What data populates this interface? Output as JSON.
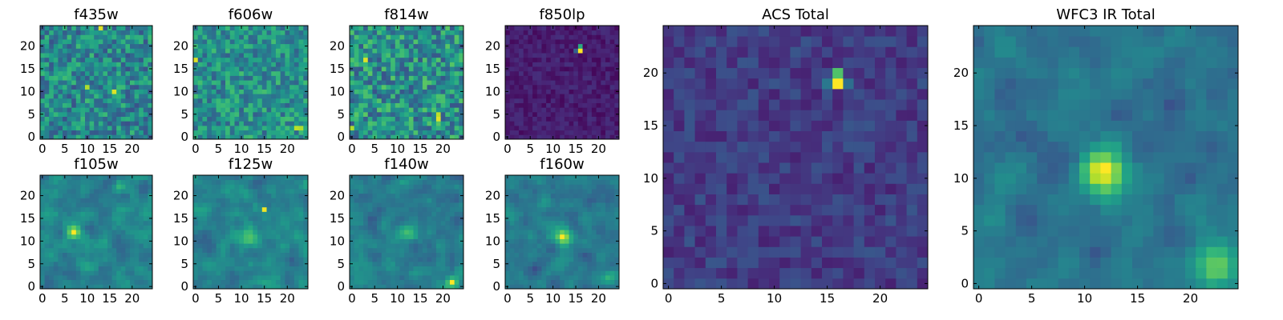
{
  "figure": {
    "colormap": "viridis",
    "colormap_stops": [
      "#440154",
      "#482878",
      "#3e4989",
      "#31688e",
      "#26828e",
      "#1f9e89",
      "#35b779",
      "#6ece58",
      "#b5de2b",
      "#fde725"
    ],
    "axis_color": "#000000"
  },
  "chart_data": [
    {
      "type": "heatmap",
      "title": "f435w",
      "grid_size": 25,
      "xlim": [
        -0.5,
        24.5
      ],
      "ylim": [
        -0.5,
        24.5
      ],
      "xticks": [
        0,
        5,
        10,
        15,
        20
      ],
      "yticks": [
        0,
        5,
        10,
        15,
        20
      ],
      "background_level": 0.47,
      "background_spread": 0.22,
      "peaks": [],
      "hot_pixels": [
        {
          "x": 16,
          "y": 10,
          "v": 0.95
        },
        {
          "x": 13,
          "y": 24,
          "v": 0.95
        },
        {
          "x": 10,
          "y": 11,
          "v": 0.88
        }
      ]
    },
    {
      "type": "heatmap",
      "title": "f606w",
      "grid_size": 25,
      "xlim": [
        -0.5,
        24.5
      ],
      "ylim": [
        -0.5,
        24.5
      ],
      "xticks": [
        0,
        5,
        10,
        15,
        20
      ],
      "yticks": [
        0,
        5,
        10,
        15,
        20
      ],
      "background_level": 0.5,
      "background_spread": 0.2,
      "peaks": [],
      "hot_pixels": [
        {
          "x": 0,
          "y": 17,
          "v": 0.95
        },
        {
          "x": 22,
          "y": 2,
          "v": 0.9
        },
        {
          "x": 23,
          "y": 2,
          "v": 0.88
        }
      ]
    },
    {
      "type": "heatmap",
      "title": "f814w",
      "grid_size": 25,
      "xlim": [
        -0.5,
        24.5
      ],
      "ylim": [
        -0.5,
        24.5
      ],
      "xticks": [
        0,
        5,
        10,
        15,
        20
      ],
      "yticks": [
        0,
        5,
        10,
        15,
        20
      ],
      "background_level": 0.5,
      "background_spread": 0.24,
      "peaks": [],
      "hot_pixels": [
        {
          "x": 3,
          "y": 17,
          "v": 0.95
        },
        {
          "x": 19,
          "y": 4,
          "v": 0.95
        },
        {
          "x": 19,
          "y": 5,
          "v": 0.9
        },
        {
          "x": 0,
          "y": 2,
          "v": 0.88
        }
      ]
    },
    {
      "type": "heatmap",
      "title": "f850lp",
      "grid_size": 25,
      "xlim": [
        -0.5,
        24.5
      ],
      "ylim": [
        -0.5,
        24.5
      ],
      "xticks": [
        0,
        5,
        10,
        15,
        20
      ],
      "yticks": [
        0,
        5,
        10,
        15,
        20
      ],
      "background_level": 0.08,
      "background_spread": 0.06,
      "peaks": [],
      "hot_pixels": [
        {
          "x": 16,
          "y": 19,
          "v": 1.0
        },
        {
          "x": 16,
          "y": 20,
          "v": 0.6
        },
        {
          "x": 15,
          "y": 19,
          "v": 0.3
        }
      ]
    },
    {
      "type": "heatmap",
      "title": "f105w",
      "grid_size": 25,
      "xlim": [
        -0.5,
        24.5
      ],
      "ylim": [
        -0.5,
        24.5
      ],
      "xticks": [
        0,
        5,
        10,
        15,
        20
      ],
      "yticks": [
        0,
        5,
        10,
        15,
        20
      ],
      "background_level": 0.45,
      "background_spread": 0.18,
      "peaks": [
        {
          "x": 7,
          "y": 12,
          "amp": 0.45,
          "sigma": 1.2
        },
        {
          "x": 17,
          "y": 22,
          "amp": 0.3,
          "sigma": 1.0
        }
      ],
      "hot_pixels": [
        {
          "x": 7,
          "y": 12,
          "v": 1.0
        }
      ]
    },
    {
      "type": "heatmap",
      "title": "f125w",
      "grid_size": 25,
      "xlim": [
        -0.5,
        24.5
      ],
      "ylim": [
        -0.5,
        24.5
      ],
      "xticks": [
        0,
        5,
        10,
        15,
        20
      ],
      "yticks": [
        0,
        5,
        10,
        15,
        20
      ],
      "background_level": 0.45,
      "background_spread": 0.17,
      "peaks": [
        {
          "x": 12,
          "y": 11,
          "amp": 0.25,
          "sigma": 1.8
        }
      ],
      "hot_pixels": [
        {
          "x": 15,
          "y": 17,
          "v": 0.98
        }
      ]
    },
    {
      "type": "heatmap",
      "title": "f140w",
      "grid_size": 25,
      "xlim": [
        -0.5,
        24.5
      ],
      "ylim": [
        -0.5,
        24.5
      ],
      "xticks": [
        0,
        5,
        10,
        15,
        20
      ],
      "yticks": [
        0,
        5,
        10,
        15,
        20
      ],
      "background_level": 0.43,
      "background_spread": 0.17,
      "peaks": [
        {
          "x": 12,
          "y": 12,
          "amp": 0.25,
          "sigma": 1.5
        },
        {
          "x": 22,
          "y": 1,
          "amp": 0.45,
          "sigma": 1.0
        }
      ],
      "hot_pixels": [
        {
          "x": 22,
          "y": 1,
          "v": 1.0
        }
      ]
    },
    {
      "type": "heatmap",
      "title": "f160w",
      "grid_size": 25,
      "xlim": [
        -0.5,
        24.5
      ],
      "ylim": [
        -0.5,
        24.5
      ],
      "xticks": [
        0,
        5,
        10,
        15,
        20
      ],
      "yticks": [
        0,
        5,
        10,
        15,
        20
      ],
      "background_level": 0.4,
      "background_spread": 0.15,
      "peaks": [
        {
          "x": 12,
          "y": 11,
          "amp": 0.5,
          "sigma": 1.3
        },
        {
          "x": 22,
          "y": 2,
          "amp": 0.3,
          "sigma": 1.2
        }
      ],
      "hot_pixels": [
        {
          "x": 12,
          "y": 11,
          "v": 1.0
        }
      ]
    },
    {
      "type": "heatmap",
      "title": "ACS Total",
      "grid_size": 25,
      "xlim": [
        -0.5,
        24.5
      ],
      "ylim": [
        -0.5,
        24.5
      ],
      "xticks": [
        0,
        5,
        10,
        15,
        20
      ],
      "yticks": [
        0,
        5,
        10,
        15,
        20
      ],
      "background_level": 0.18,
      "background_spread": 0.09,
      "peaks": [],
      "hot_pixels": [
        {
          "x": 16,
          "y": 19,
          "v": 1.0
        },
        {
          "x": 16,
          "y": 20,
          "v": 0.72
        },
        {
          "x": 15,
          "y": 19,
          "v": 0.4
        },
        {
          "x": 17,
          "y": 19,
          "v": 0.36
        }
      ]
    },
    {
      "type": "heatmap",
      "title": "WFC3 IR Total",
      "grid_size": 25,
      "xlim": [
        -0.5,
        24.5
      ],
      "ylim": [
        -0.5,
        24.5
      ],
      "xticks": [
        0,
        5,
        10,
        15,
        20
      ],
      "yticks": [
        0,
        5,
        10,
        15,
        20
      ],
      "background_level": 0.38,
      "background_spread": 0.14,
      "peaks": [
        {
          "x": 12,
          "y": 11,
          "amp": 0.55,
          "sigma": 1.6
        },
        {
          "x": 22,
          "y": 2,
          "amp": 0.4,
          "sigma": 1.6
        }
      ],
      "hot_pixels": [
        {
          "x": 12,
          "y": 11,
          "v": 1.0
        }
      ]
    }
  ]
}
